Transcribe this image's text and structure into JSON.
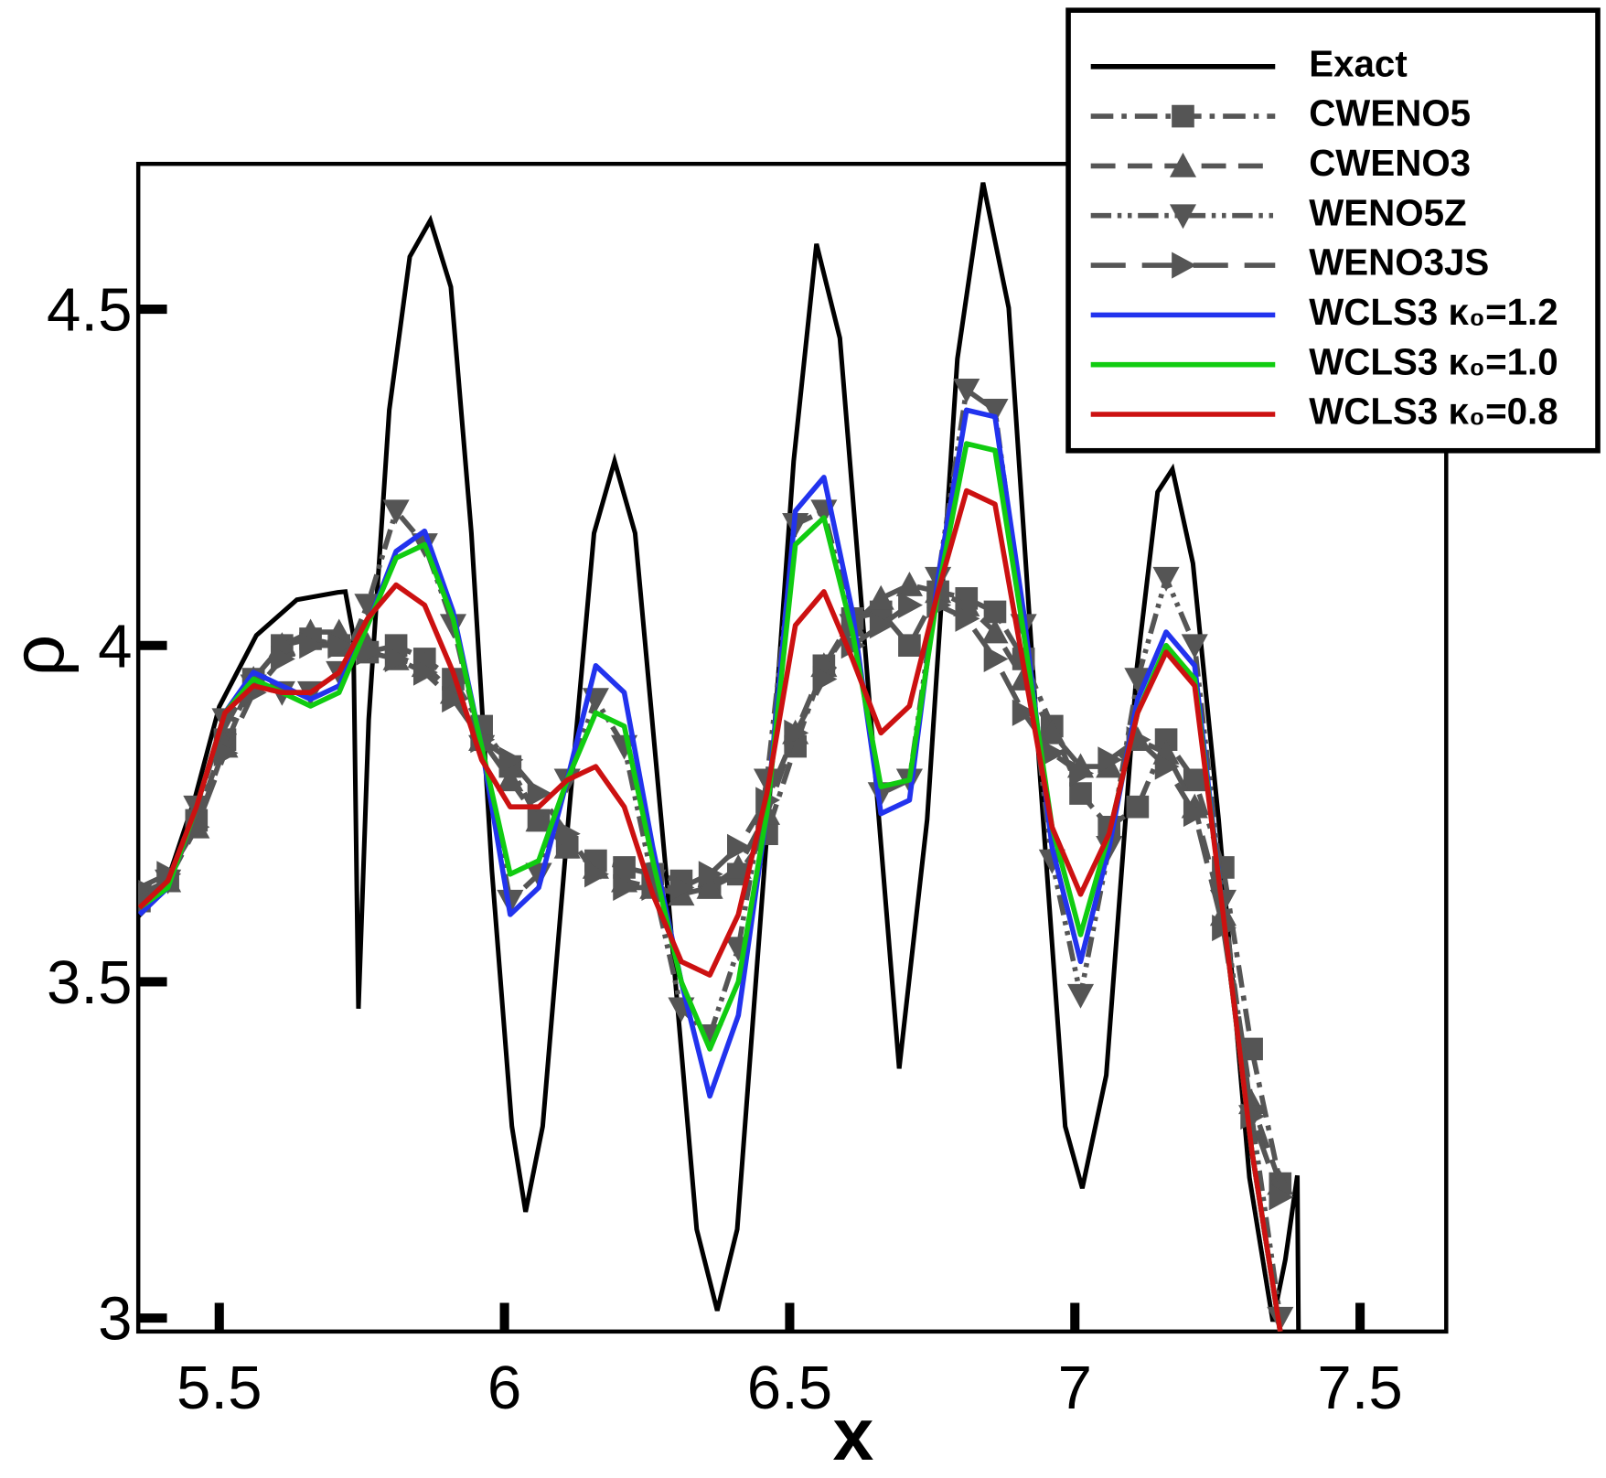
{
  "chart_data": {
    "type": "line",
    "xlabel": "x",
    "ylabel": "ρ",
    "xlim": [
      5.358,
      7.651
    ],
    "ylim": [
      2.98,
      4.716
    ],
    "xticks": [
      5.5,
      6,
      6.5,
      7,
      7.5
    ],
    "yticks": [
      3,
      3.5,
      4,
      4.5
    ],
    "legend": "upper right",
    "exact": {
      "name": "Exact",
      "color": "#000000",
      "linestyle": "solid",
      "x": [
        5.358,
        5.403,
        5.457,
        5.5,
        5.565,
        5.636,
        5.708,
        5.721,
        5.735,
        5.744,
        5.762,
        5.798,
        5.834,
        5.87,
        5.906,
        5.942,
        5.978,
        6.013,
        6.037,
        6.067,
        6.112,
        6.157,
        6.193,
        6.229,
        6.283,
        6.337,
        6.373,
        6.408,
        6.462,
        6.507,
        6.547,
        6.588,
        6.642,
        6.692,
        6.741,
        6.794,
        6.839,
        6.884,
        6.938,
        6.983,
        7.013,
        7.055,
        7.109,
        7.145,
        7.171,
        7.207,
        7.252,
        7.306,
        7.347,
        7.369,
        7.39,
        7.392
      ],
      "values": [
        3.597,
        3.635,
        3.772,
        3.909,
        4.015,
        4.068,
        4.079,
        4.08,
        4.015,
        3.46,
        3.89,
        4.35,
        4.578,
        4.632,
        4.533,
        4.167,
        3.665,
        3.285,
        3.158,
        3.285,
        3.741,
        4.167,
        4.274,
        4.167,
        3.665,
        3.132,
        3.011,
        3.132,
        3.741,
        4.274,
        4.597,
        4.457,
        3.893,
        3.371,
        3.741,
        4.426,
        4.688,
        4.502,
        3.817,
        3.285,
        3.193,
        3.361,
        3.969,
        4.228,
        4.262,
        4.122,
        3.741,
        3.209,
        2.995,
        3.087,
        3.212,
        2.98
      ]
    },
    "x": [
      5.36,
      5.41,
      5.46,
      5.51,
      5.56,
      5.61,
      5.66,
      5.71,
      5.76,
      5.81,
      5.86,
      5.91,
      5.96,
      6.01,
      6.06,
      6.11,
      6.16,
      6.21,
      6.26,
      6.31,
      6.36,
      6.41,
      6.46,
      6.51,
      6.56,
      6.61,
      6.66,
      6.71,
      6.76,
      6.81,
      6.86,
      6.91,
      6.96,
      7.01,
      7.06,
      7.11,
      7.16,
      7.21,
      7.26,
      7.31,
      7.36
    ],
    "series": [
      {
        "name": "CWENO5",
        "color": "#555555",
        "linestyle": "dash-dot",
        "marker": "square",
        "values": [
          3.62,
          3.65,
          3.74,
          3.86,
          3.95,
          4.0,
          4.01,
          4.0,
          3.99,
          4.0,
          3.98,
          3.95,
          3.88,
          3.82,
          3.74,
          3.7,
          3.68,
          3.67,
          3.66,
          3.65,
          3.64,
          3.66,
          3.72,
          3.85,
          3.97,
          4.04,
          4.05,
          4.0,
          4.08,
          4.07,
          4.05,
          3.98,
          3.88,
          3.78,
          3.73,
          3.76,
          3.86,
          3.8,
          3.67,
          3.4,
          3.2
        ]
      },
      {
        "name": "CWENO3",
        "color": "#555555",
        "linestyle": "dashed",
        "marker": "triangle-up",
        "values": [
          3.63,
          3.65,
          3.73,
          3.85,
          3.95,
          4.0,
          4.02,
          4.02,
          4.0,
          3.98,
          3.97,
          3.93,
          3.86,
          3.8,
          3.74,
          3.7,
          3.67,
          3.65,
          3.64,
          3.63,
          3.64,
          3.67,
          3.75,
          3.87,
          3.97,
          4.03,
          4.07,
          4.09,
          4.08,
          4.06,
          4.02,
          3.95,
          3.87,
          3.82,
          3.82,
          3.86,
          3.84,
          3.76,
          3.6,
          3.32,
          3.2
        ]
      },
      {
        "name": "WENO5Z",
        "color": "#555555",
        "linestyle": "dash-dot-dot",
        "marker": "triangle-down",
        "values": [
          3.63,
          3.65,
          3.76,
          3.89,
          3.94,
          3.93,
          3.93,
          3.96,
          4.06,
          4.2,
          4.15,
          4.03,
          3.85,
          3.62,
          3.66,
          3.8,
          3.92,
          3.85,
          3.65,
          3.46,
          3.42,
          3.55,
          3.8,
          4.18,
          4.2,
          4.03,
          3.78,
          3.8,
          4.1,
          4.38,
          4.35,
          4.03,
          3.68,
          3.48,
          3.7,
          3.95,
          4.1,
          4.0,
          3.62,
          3.3,
          3.0
        ]
      },
      {
        "name": "WENO3JS",
        "color": "#555555",
        "linestyle": "long-dash",
        "marker": "triangle-right",
        "values": [
          3.64,
          3.66,
          3.73,
          3.84,
          3.93,
          3.98,
          4.0,
          4.0,
          3.99,
          3.98,
          3.96,
          3.92,
          3.86,
          3.83,
          3.78,
          3.72,
          3.66,
          3.64,
          3.64,
          3.64,
          3.66,
          3.7,
          3.77,
          3.87,
          3.95,
          4.0,
          4.03,
          4.06,
          4.06,
          4.04,
          3.98,
          3.9,
          3.84,
          3.81,
          3.83,
          3.86,
          3.82,
          3.75,
          3.58,
          3.3,
          3.18
        ]
      },
      {
        "name": "WCLS3 κ₀=1.2",
        "color": "#2233ee",
        "linestyle": "solid",
        "values": [
          3.6,
          3.64,
          3.76,
          3.9,
          3.96,
          3.94,
          3.92,
          3.94,
          4.03,
          4.14,
          4.17,
          4.05,
          3.85,
          3.6,
          3.64,
          3.8,
          3.97,
          3.93,
          3.7,
          3.5,
          3.33,
          3.45,
          3.75,
          4.2,
          4.25,
          4.05,
          3.75,
          3.77,
          4.1,
          4.35,
          4.34,
          4.05,
          3.7,
          3.53,
          3.7,
          3.92,
          4.02,
          3.97,
          3.6,
          3.25,
          2.98
        ]
      },
      {
        "name": "WCLS3 κ₀=1.0",
        "color": "#11cc11",
        "linestyle": "solid",
        "values": [
          3.61,
          3.64,
          3.76,
          3.9,
          3.95,
          3.93,
          3.91,
          3.93,
          4.03,
          4.13,
          4.15,
          4.04,
          3.85,
          3.66,
          3.68,
          3.8,
          3.9,
          3.88,
          3.68,
          3.5,
          3.4,
          3.5,
          3.75,
          4.15,
          4.19,
          4.02,
          3.79,
          3.8,
          4.08,
          4.3,
          4.29,
          4.02,
          3.73,
          3.57,
          3.72,
          3.9,
          4.0,
          3.95,
          3.6,
          3.25,
          2.98
        ]
      },
      {
        "name": "WCLS3 κ₀=0.8",
        "color": "#cc1111",
        "linestyle": "solid",
        "values": [
          3.61,
          3.65,
          3.76,
          3.9,
          3.94,
          3.93,
          3.93,
          3.96,
          4.04,
          4.09,
          4.06,
          3.96,
          3.83,
          3.76,
          3.76,
          3.8,
          3.82,
          3.76,
          3.63,
          3.53,
          3.51,
          3.6,
          3.78,
          4.03,
          4.08,
          3.98,
          3.87,
          3.91,
          4.08,
          4.23,
          4.21,
          3.97,
          3.73,
          3.63,
          3.72,
          3.9,
          3.99,
          3.94,
          3.6,
          3.25,
          2.98
        ]
      }
    ]
  }
}
